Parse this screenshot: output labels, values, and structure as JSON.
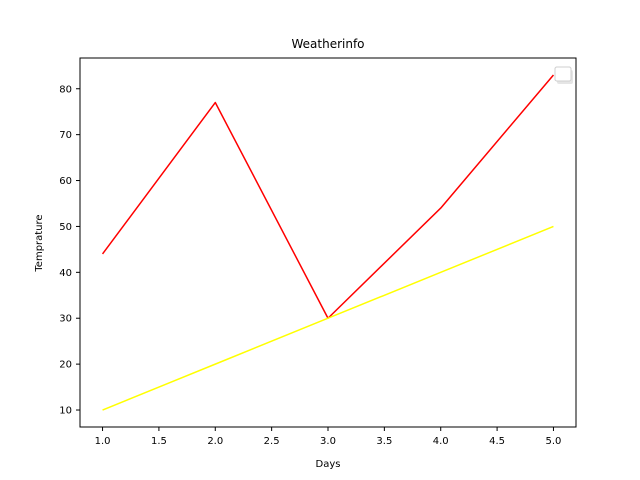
{
  "chart_data": {
    "type": "line",
    "title": "Weatherinfo",
    "xlabel": "Days",
    "ylabel": "Temprature",
    "x": [
      1,
      2,
      3,
      4,
      5
    ],
    "xlim": [
      0.8,
      5.2
    ],
    "ylim": [
      6.3,
      86.7
    ],
    "xticks": [
      "1.0",
      "1.5",
      "2.0",
      "2.5",
      "3.0",
      "3.5",
      "4.0",
      "4.5",
      "5.0"
    ],
    "yticks": [
      "10",
      "20",
      "30",
      "40",
      "50",
      "60",
      "70",
      "80"
    ],
    "grid": false,
    "legend": "top-right (empty)",
    "series": [
      {
        "values": [
          44,
          77,
          30,
          54,
          83
        ],
        "color": "#ff0000"
      },
      {
        "values": [
          10,
          20,
          30,
          40,
          50
        ],
        "color": "#ffff00"
      }
    ]
  }
}
